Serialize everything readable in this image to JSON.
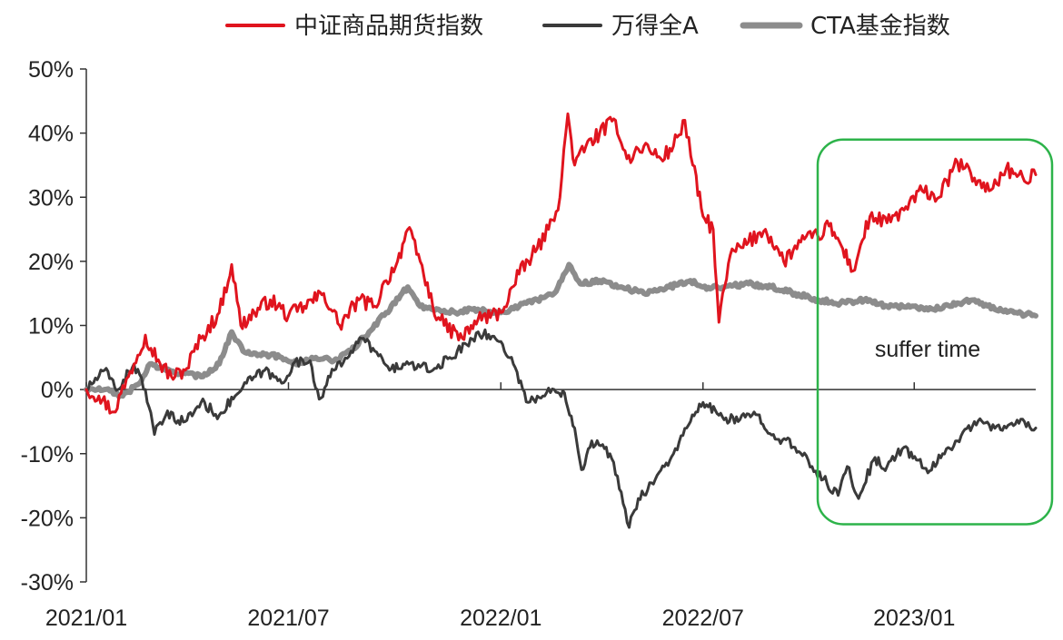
{
  "chart_data": {
    "type": "line",
    "title": "",
    "xlabel": "",
    "ylabel": "",
    "ylim": [
      -0.3,
      0.5
    ],
    "y_ticks": [
      0.5,
      0.4,
      0.3,
      0.2,
      0.1,
      0.0,
      -0.1,
      -0.2,
      -0.3
    ],
    "y_tick_labels": [
      "50%",
      "40%",
      "30%",
      "20%",
      "10%",
      "0%",
      "-10%",
      "-20%",
      "-30%"
    ],
    "xlim": [
      "2021-01-04",
      "2023-04-20"
    ],
    "x_ticks": [
      "2021-01-04",
      "2021-07-01",
      "2022-01-04",
      "2022-07-01",
      "2023-01-03"
    ],
    "x_tick_labels": [
      "2021/01",
      "2021/07",
      "2022/01",
      "2022/07",
      "2023/01"
    ],
    "grid": false,
    "legend_position": "top",
    "annotation": {
      "text": "suffer time",
      "x_start": "2022-10-10",
      "x_end": "2023-04-20",
      "y_top": 0.39,
      "y_bottom": -0.21,
      "color": "#2DB34A"
    },
    "series": [
      {
        "name": "中证商品期货指数",
        "color": "#E0141E",
        "width": 3,
        "points": [
          [
            "2021-01-04",
            0.0
          ],
          [
            "2021-01-15",
            -0.01
          ],
          [
            "2021-01-28",
            -0.035
          ],
          [
            "2021-02-10",
            0.02
          ],
          [
            "2021-02-25",
            0.085
          ],
          [
            "2021-03-10",
            0.04
          ],
          [
            "2021-03-20",
            0.02
          ],
          [
            "2021-04-01",
            0.03
          ],
          [
            "2021-04-15",
            0.08
          ],
          [
            "2021-05-01",
            0.12
          ],
          [
            "2021-05-12",
            0.195
          ],
          [
            "2021-05-20",
            0.1
          ],
          [
            "2021-06-01",
            0.12
          ],
          [
            "2021-06-15",
            0.14
          ],
          [
            "2021-07-01",
            0.115
          ],
          [
            "2021-07-15",
            0.13
          ],
          [
            "2021-08-01",
            0.15
          ],
          [
            "2021-08-15",
            0.1
          ],
          [
            "2021-09-01",
            0.14
          ],
          [
            "2021-09-15",
            0.13
          ],
          [
            "2021-09-25",
            0.17
          ],
          [
            "2021-10-05",
            0.2
          ],
          [
            "2021-10-14",
            0.25
          ],
          [
            "2021-10-25",
            0.2
          ],
          [
            "2021-11-05",
            0.13
          ],
          [
            "2021-11-15",
            0.1
          ],
          [
            "2021-12-01",
            0.08
          ],
          [
            "2021-12-15",
            0.11
          ],
          [
            "2022-01-04",
            0.12
          ],
          [
            "2022-01-20",
            0.18
          ],
          [
            "2022-02-05",
            0.22
          ],
          [
            "2022-02-15",
            0.25
          ],
          [
            "2022-02-25",
            0.3
          ],
          [
            "2022-03-04",
            0.43
          ],
          [
            "2022-03-10",
            0.35
          ],
          [
            "2022-03-20",
            0.38
          ],
          [
            "2022-04-01",
            0.4
          ],
          [
            "2022-04-15",
            0.42
          ],
          [
            "2022-04-25",
            0.36
          ],
          [
            "2022-05-10",
            0.38
          ],
          [
            "2022-05-25",
            0.36
          ],
          [
            "2022-06-05",
            0.38
          ],
          [
            "2022-06-15",
            0.42
          ],
          [
            "2022-06-22",
            0.35
          ],
          [
            "2022-07-01",
            0.27
          ],
          [
            "2022-07-10",
            0.25
          ],
          [
            "2022-07-15",
            0.105
          ],
          [
            "2022-07-25",
            0.21
          ],
          [
            "2022-08-10",
            0.23
          ],
          [
            "2022-08-25",
            0.25
          ],
          [
            "2022-09-10",
            0.2
          ],
          [
            "2022-09-25",
            0.23
          ],
          [
            "2022-10-10",
            0.24
          ],
          [
            "2022-10-20",
            0.255
          ],
          [
            "2022-11-01",
            0.22
          ],
          [
            "2022-11-10",
            0.185
          ],
          [
            "2022-11-25",
            0.27
          ],
          [
            "2022-12-10",
            0.26
          ],
          [
            "2022-12-25",
            0.28
          ],
          [
            "2023-01-10",
            0.31
          ],
          [
            "2023-01-25",
            0.3
          ],
          [
            "2023-02-10",
            0.355
          ],
          [
            "2023-02-25",
            0.33
          ],
          [
            "2023-03-10",
            0.31
          ],
          [
            "2023-03-25",
            0.345
          ],
          [
            "2023-04-10",
            0.325
          ],
          [
            "2023-04-20",
            0.335
          ]
        ]
      },
      {
        "name": "万得全A",
        "color": "#3A3A3A",
        "width": 3,
        "points": [
          [
            "2021-01-04",
            0.0
          ],
          [
            "2021-01-20",
            0.03
          ],
          [
            "2021-02-01",
            0.0
          ],
          [
            "2021-02-15",
            0.04
          ],
          [
            "2021-02-25",
            0.0
          ],
          [
            "2021-03-05",
            -0.07
          ],
          [
            "2021-03-15",
            -0.04
          ],
          [
            "2021-04-01",
            -0.05
          ],
          [
            "2021-04-15",
            -0.02
          ],
          [
            "2021-05-01",
            -0.04
          ],
          [
            "2021-05-15",
            -0.01
          ],
          [
            "2021-05-25",
            0.01
          ],
          [
            "2021-06-10",
            0.03
          ],
          [
            "2021-06-25",
            0.01
          ],
          [
            "2021-07-05",
            0.04
          ],
          [
            "2021-07-20",
            0.045
          ],
          [
            "2021-07-28",
            -0.015
          ],
          [
            "2021-08-10",
            0.03
          ],
          [
            "2021-08-25",
            0.06
          ],
          [
            "2021-09-05",
            0.08
          ],
          [
            "2021-09-15",
            0.06
          ],
          [
            "2021-09-28",
            0.03
          ],
          [
            "2021-10-10",
            0.04
          ],
          [
            "2021-10-25",
            0.035
          ],
          [
            "2021-11-05",
            0.03
          ],
          [
            "2021-11-20",
            0.05
          ],
          [
            "2021-12-05",
            0.07
          ],
          [
            "2021-12-15",
            0.09
          ],
          [
            "2022-01-04",
            0.075
          ],
          [
            "2022-01-15",
            0.04
          ],
          [
            "2022-01-28",
            -0.02
          ],
          [
            "2022-02-10",
            -0.01
          ],
          [
            "2022-02-20",
            0.0
          ],
          [
            "2022-03-01",
            -0.005
          ],
          [
            "2022-03-10",
            -0.06
          ],
          [
            "2022-03-16",
            -0.125
          ],
          [
            "2022-03-25",
            -0.08
          ],
          [
            "2022-04-10",
            -0.1
          ],
          [
            "2022-04-20",
            -0.16
          ],
          [
            "2022-04-27",
            -0.215
          ],
          [
            "2022-05-05",
            -0.17
          ],
          [
            "2022-05-20",
            -0.14
          ],
          [
            "2022-06-05",
            -0.1
          ],
          [
            "2022-06-20",
            -0.05
          ],
          [
            "2022-07-01",
            -0.02
          ],
          [
            "2022-07-15",
            -0.04
          ],
          [
            "2022-08-01",
            -0.05
          ],
          [
            "2022-08-15",
            -0.035
          ],
          [
            "2022-09-01",
            -0.07
          ],
          [
            "2022-09-20",
            -0.09
          ],
          [
            "2022-10-05",
            -0.12
          ],
          [
            "2022-10-15",
            -0.14
          ],
          [
            "2022-10-28",
            -0.165
          ],
          [
            "2022-11-05",
            -0.12
          ],
          [
            "2022-11-15",
            -0.17
          ],
          [
            "2022-11-28",
            -0.11
          ],
          [
            "2022-12-10",
            -0.12
          ],
          [
            "2022-12-25",
            -0.09
          ],
          [
            "2023-01-05",
            -0.11
          ],
          [
            "2023-01-15",
            -0.13
          ],
          [
            "2023-01-28",
            -0.1
          ],
          [
            "2023-02-10",
            -0.08
          ],
          [
            "2023-02-25",
            -0.05
          ],
          [
            "2023-03-10",
            -0.055
          ],
          [
            "2023-03-25",
            -0.06
          ],
          [
            "2023-04-10",
            -0.05
          ],
          [
            "2023-04-20",
            -0.06
          ]
        ]
      },
      {
        "name": "CTA基金指数",
        "color": "#8C8C8C",
        "width": 6,
        "points": [
          [
            "2021-01-04",
            0.0
          ],
          [
            "2021-01-20",
            0.0
          ],
          [
            "2021-02-05",
            -0.01
          ],
          [
            "2021-02-20",
            0.01
          ],
          [
            "2021-03-01",
            0.04
          ],
          [
            "2021-03-15",
            0.03
          ],
          [
            "2021-04-01",
            0.025
          ],
          [
            "2021-04-15",
            0.02
          ],
          [
            "2021-05-01",
            0.04
          ],
          [
            "2021-05-12",
            0.09
          ],
          [
            "2021-05-22",
            0.06
          ],
          [
            "2021-06-10",
            0.055
          ],
          [
            "2021-06-25",
            0.05
          ],
          [
            "2021-07-10",
            0.04
          ],
          [
            "2021-07-25",
            0.05
          ],
          [
            "2021-08-10",
            0.045
          ],
          [
            "2021-08-25",
            0.06
          ],
          [
            "2021-09-10",
            0.09
          ],
          [
            "2021-09-25",
            0.12
          ],
          [
            "2021-10-14",
            0.16
          ],
          [
            "2021-10-25",
            0.13
          ],
          [
            "2021-11-10",
            0.125
          ],
          [
            "2021-11-25",
            0.12
          ],
          [
            "2021-12-10",
            0.125
          ],
          [
            "2022-01-04",
            0.12
          ],
          [
            "2022-01-20",
            0.13
          ],
          [
            "2022-02-05",
            0.14
          ],
          [
            "2022-02-20",
            0.15
          ],
          [
            "2022-03-05",
            0.195
          ],
          [
            "2022-03-15",
            0.165
          ],
          [
            "2022-04-01",
            0.17
          ],
          [
            "2022-04-20",
            0.16
          ],
          [
            "2022-05-10",
            0.15
          ],
          [
            "2022-06-01",
            0.16
          ],
          [
            "2022-06-20",
            0.17
          ],
          [
            "2022-07-01",
            0.16
          ],
          [
            "2022-07-20",
            0.16
          ],
          [
            "2022-08-10",
            0.165
          ],
          [
            "2022-08-30",
            0.16
          ],
          [
            "2022-09-20",
            0.15
          ],
          [
            "2022-10-10",
            0.14
          ],
          [
            "2022-10-30",
            0.135
          ],
          [
            "2022-11-20",
            0.14
          ],
          [
            "2022-12-10",
            0.13
          ],
          [
            "2023-01-01",
            0.13
          ],
          [
            "2023-01-20",
            0.125
          ],
          [
            "2023-02-10",
            0.135
          ],
          [
            "2023-02-25",
            0.14
          ],
          [
            "2023-03-15",
            0.125
          ],
          [
            "2023-04-01",
            0.12
          ],
          [
            "2023-04-20",
            0.115
          ]
        ]
      }
    ]
  }
}
